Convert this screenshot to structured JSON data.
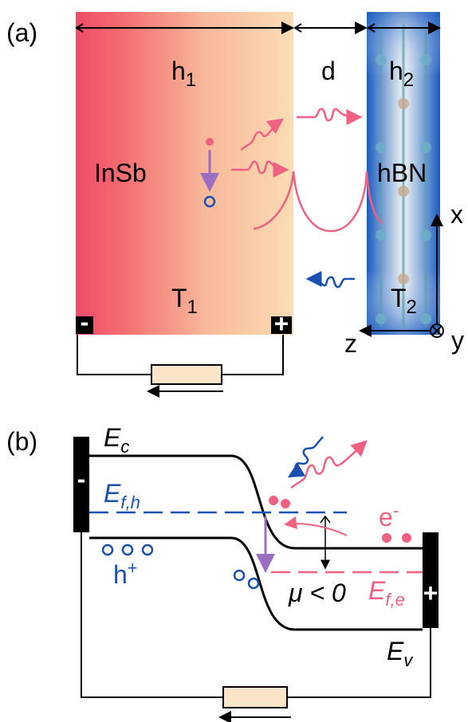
{
  "panel_a": {
    "label": "(a)",
    "h1": {
      "main": "h",
      "sub": "1"
    },
    "d": "d",
    "h2": {
      "main": "h",
      "sub": "2"
    },
    "insb": "InSb",
    "hbn": "hBN",
    "t1": {
      "main": "T",
      "sub": "1"
    },
    "t2": {
      "main": "T",
      "sub": "2"
    },
    "axis_x": "x",
    "axis_z": "z",
    "axis_y": "y",
    "minus": "-",
    "plus": "+"
  },
  "panel_b": {
    "label": "(b)",
    "ec": {
      "main": "E",
      "sub": "c"
    },
    "efh": {
      "main": "E",
      "sub": "f,h"
    },
    "holes": {
      "main": "h",
      "sup": "+"
    },
    "electrons": {
      "main": "e",
      "sup": "-"
    },
    "mu": "μ < 0",
    "efe": {
      "main": "E",
      "sub": "f,e"
    },
    "ev": {
      "main": "E",
      "sub": "v"
    },
    "minus": "-",
    "plus": "+"
  }
}
